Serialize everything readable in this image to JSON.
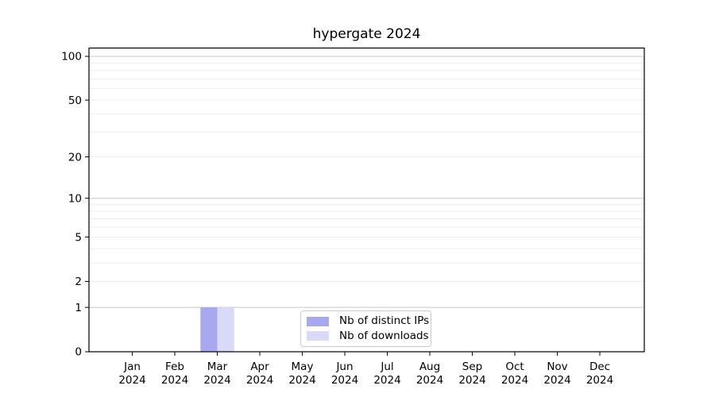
{
  "chart_data": {
    "type": "bar",
    "title": "hypergate 2024",
    "categories": [
      "Jan",
      "Feb",
      "Mar",
      "Apr",
      "May",
      "Jun",
      "Jul",
      "Aug",
      "Sep",
      "Oct",
      "Nov",
      "Dec"
    ],
    "category_year": "2024",
    "series": [
      {
        "name": "Nb of distinct IPs",
        "color": "#a8a8f0",
        "values": [
          0,
          0,
          1,
          0,
          0,
          0,
          0,
          0,
          0,
          0,
          0,
          0
        ]
      },
      {
        "name": "Nb of downloads",
        "color": "#d9d9f8",
        "values": [
          0,
          0,
          1,
          0,
          0,
          0,
          0,
          0,
          0,
          0,
          0,
          0
        ]
      }
    ],
    "xlabel": "",
    "ylabel": "",
    "y_scale": "log1p",
    "ylim": [
      0,
      115
    ],
    "y_tick_labels": [
      0,
      1,
      2,
      5,
      10,
      20,
      50,
      100
    ],
    "y_major_gridlines": [
      1,
      10,
      100
    ],
    "y_minor_gridlines": [
      2,
      3,
      4,
      5,
      6,
      7,
      8,
      9,
      20,
      30,
      40,
      50,
      60,
      70,
      80,
      90
    ],
    "grid": "horizontal",
    "legend_position": "lower center",
    "colors": {
      "background": "#ffffff",
      "axis": "#000000",
      "major_grid": "#c8c8c8",
      "minor_grid": "#ededed",
      "legend_border": "#cccccc",
      "text": "#000000"
    }
  }
}
